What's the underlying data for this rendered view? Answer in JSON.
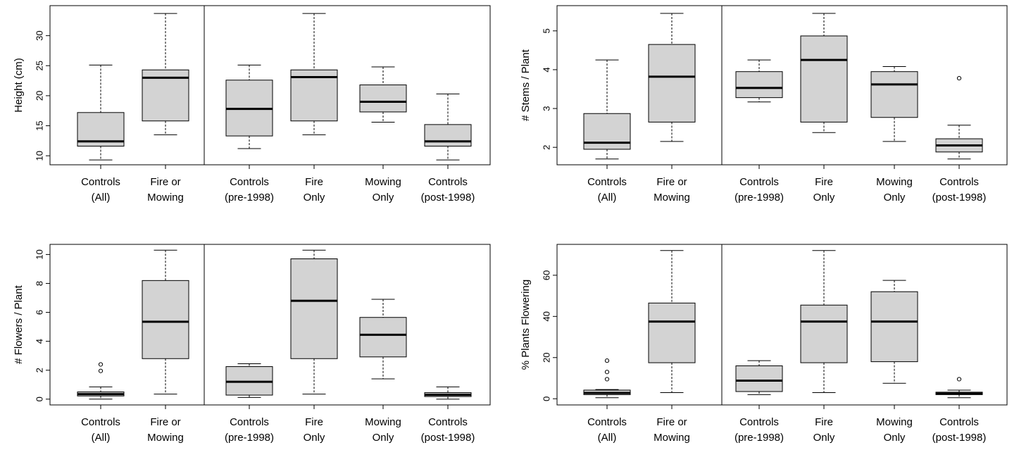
{
  "chart_data": [
    {
      "type": "box",
      "ylabel": "Height (cm)",
      "yticks": [
        10,
        15,
        20,
        25,
        30
      ],
      "ylim": [
        8.5,
        35
      ],
      "groups": [
        {
          "label_lines": [
            "Controls",
            "(All)"
          ],
          "min": 9.3,
          "q1": 11.6,
          "median": 12.4,
          "q3": 17.2,
          "max": 25.1,
          "outliers": []
        },
        {
          "label_lines": [
            "Fire or",
            "Mowing"
          ],
          "min": 13.5,
          "q1": 15.8,
          "median": 23.0,
          "q3": 24.3,
          "max": 33.7,
          "outliers": []
        },
        {
          "label_lines": [
            "Controls",
            "(pre-1998)"
          ],
          "min": 11.2,
          "q1": 13.3,
          "median": 17.8,
          "q3": 22.6,
          "max": 25.1,
          "outliers": []
        },
        {
          "label_lines": [
            "Fire",
            "Only"
          ],
          "min": 13.5,
          "q1": 15.8,
          "median": 23.1,
          "q3": 24.3,
          "max": 33.7,
          "outliers": []
        },
        {
          "label_lines": [
            "Mowing",
            "Only"
          ],
          "min": 15.6,
          "q1": 17.3,
          "median": 19.0,
          "q3": 21.8,
          "max": 24.8,
          "outliers": []
        },
        {
          "label_lines": [
            "Controls",
            "(post-1998)"
          ],
          "min": 9.3,
          "q1": 11.6,
          "median": 12.4,
          "q3": 15.2,
          "max": 20.3,
          "outliers": []
        }
      ]
    },
    {
      "type": "box",
      "ylabel": "# Stems / Plant",
      "yticks": [
        2,
        3,
        4,
        5
      ],
      "ylim": [
        1.55,
        5.65
      ],
      "groups": [
        {
          "label_lines": [
            "Controls",
            "(All)"
          ],
          "min": 1.7,
          "q1": 1.95,
          "median": 2.12,
          "q3": 2.87,
          "max": 4.25,
          "outliers": []
        },
        {
          "label_lines": [
            "Fire or",
            "Mowing"
          ],
          "min": 2.15,
          "q1": 2.65,
          "median": 3.82,
          "q3": 4.65,
          "max": 5.45,
          "outliers": []
        },
        {
          "label_lines": [
            "Controls",
            "(pre-1998)"
          ],
          "min": 3.17,
          "q1": 3.28,
          "median": 3.53,
          "q3": 3.95,
          "max": 4.25,
          "outliers": []
        },
        {
          "label_lines": [
            "Fire",
            "Only"
          ],
          "min": 2.38,
          "q1": 2.65,
          "median": 4.25,
          "q3": 4.87,
          "max": 5.45,
          "outliers": []
        },
        {
          "label_lines": [
            "Mowing",
            "Only"
          ],
          "min": 2.15,
          "q1": 2.77,
          "median": 3.62,
          "q3": 3.95,
          "max": 4.08,
          "outliers": []
        },
        {
          "label_lines": [
            "Controls",
            "(post-1998)"
          ],
          "min": 1.7,
          "q1": 1.88,
          "median": 2.05,
          "q3": 2.22,
          "max": 2.57,
          "outliers": [
            3.78
          ]
        }
      ]
    },
    {
      "type": "box",
      "ylabel": "# Flowers / Plant",
      "yticks": [
        0,
        2,
        4,
        6,
        8,
        10
      ],
      "ylim": [
        -0.4,
        10.7
      ],
      "groups": [
        {
          "label_lines": [
            "Controls",
            "(All)"
          ],
          "min": 0.0,
          "q1": 0.22,
          "median": 0.35,
          "q3": 0.5,
          "max": 0.85,
          "outliers": [
            1.95,
            2.4
          ]
        },
        {
          "label_lines": [
            "Fire or",
            "Mowing"
          ],
          "min": 0.35,
          "q1": 2.8,
          "median": 5.35,
          "q3": 8.2,
          "max": 10.3,
          "outliers": []
        },
        {
          "label_lines": [
            "Controls",
            "(pre-1998)"
          ],
          "min": 0.12,
          "q1": 0.28,
          "median": 1.2,
          "q3": 2.25,
          "max": 2.45,
          "outliers": []
        },
        {
          "label_lines": [
            "Fire",
            "Only"
          ],
          "min": 0.35,
          "q1": 2.8,
          "median": 6.8,
          "q3": 9.7,
          "max": 10.3,
          "outliers": []
        },
        {
          "label_lines": [
            "Mowing",
            "Only"
          ],
          "min": 1.4,
          "q1": 2.92,
          "median": 4.45,
          "q3": 5.65,
          "max": 6.9,
          "outliers": []
        },
        {
          "label_lines": [
            "Controls",
            "(post-1998)"
          ],
          "min": 0.0,
          "q1": 0.18,
          "median": 0.3,
          "q3": 0.45,
          "max": 0.85,
          "outliers": []
        }
      ]
    },
    {
      "type": "box",
      "ylabel": "% Plants Flowering",
      "yticks": [
        0,
        20,
        40,
        60
      ],
      "ylim": [
        -3,
        75
      ],
      "groups": [
        {
          "label_lines": [
            "Controls",
            "(All)"
          ],
          "min": 0.5,
          "q1": 2.0,
          "median": 2.8,
          "q3": 4.2,
          "max": 4.5,
          "outliers": [
            9.5,
            13.0,
            18.5
          ]
        },
        {
          "label_lines": [
            "Fire or",
            "Mowing"
          ],
          "min": 3.0,
          "q1": 17.5,
          "median": 37.5,
          "q3": 46.5,
          "max": 72.0,
          "outliers": []
        },
        {
          "label_lines": [
            "Controls",
            "(pre-1998)"
          ],
          "min": 2.0,
          "q1": 3.5,
          "median": 8.8,
          "q3": 16.0,
          "max": 18.5,
          "outliers": []
        },
        {
          "label_lines": [
            "Fire",
            "Only"
          ],
          "min": 3.0,
          "q1": 17.5,
          "median": 37.5,
          "q3": 45.5,
          "max": 72.0,
          "outliers": []
        },
        {
          "label_lines": [
            "Mowing",
            "Only"
          ],
          "min": 7.5,
          "q1": 18.0,
          "median": 37.5,
          "q3": 52.0,
          "max": 57.5,
          "outliers": []
        },
        {
          "label_lines": [
            "Controls",
            "(post-1998)"
          ],
          "min": 0.5,
          "q1": 2.0,
          "median": 2.5,
          "q3": 3.2,
          "max": 4.2,
          "outliers": [
            9.5
          ]
        }
      ]
    }
  ]
}
